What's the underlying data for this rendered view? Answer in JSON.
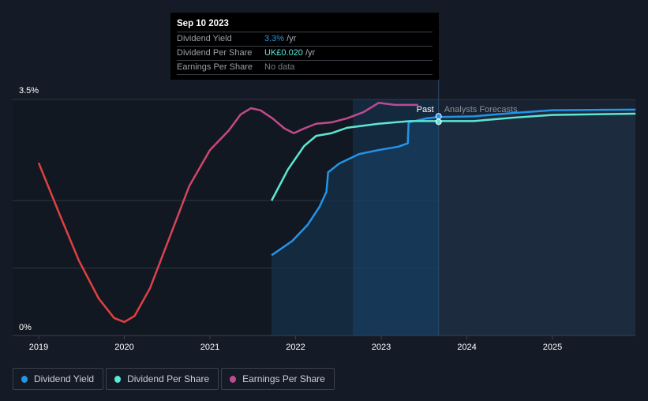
{
  "tooltip": {
    "date": "Sep 10 2023",
    "rows": [
      {
        "label": "Dividend Yield",
        "value": "3.3%",
        "unit": "/yr",
        "color": "#2394e8"
      },
      {
        "label": "Dividend Per Share",
        "value": "UK£0.020",
        "unit": "/yr",
        "color": "#5ce8d4"
      },
      {
        "label": "Earnings Per Share",
        "value": "No data",
        "unit": "",
        "color": "#777c84"
      }
    ]
  },
  "chart_data": {
    "type": "line",
    "y_tick_labels": [
      "3.5%",
      "0%"
    ],
    "ylim": [
      0,
      3.5
    ],
    "x_tick_labels": [
      "2019",
      "2020",
      "2021",
      "2022",
      "2023",
      "2024",
      "2025"
    ],
    "xlim": [
      2018.7,
      2025.97
    ],
    "past_label": "Past",
    "forecast_label": "Analysts Forecasts",
    "divider_x": 2023.67,
    "series": [
      {
        "name": "Dividend Yield",
        "color": "#2394e8",
        "points": [
          [
            2021.72,
            1.19
          ],
          [
            2021.96,
            1.4
          ],
          [
            2022.14,
            1.64
          ],
          [
            2022.28,
            1.91
          ],
          [
            2022.36,
            2.13
          ],
          [
            2022.38,
            2.42
          ],
          [
            2022.51,
            2.55
          ],
          [
            2022.74,
            2.69
          ],
          [
            2022.97,
            2.75
          ],
          [
            2023.2,
            2.8
          ],
          [
            2023.31,
            2.85
          ],
          [
            2023.32,
            3.16
          ],
          [
            2023.53,
            3.22
          ],
          [
            2023.67,
            3.24
          ],
          [
            2024.08,
            3.25
          ],
          [
            2024.54,
            3.3
          ],
          [
            2025.0,
            3.34
          ],
          [
            2025.97,
            3.35
          ]
        ]
      },
      {
        "name": "Dividend Per Share",
        "color": "#5ce8d4",
        "points": [
          [
            2021.72,
            2.0
          ],
          [
            2021.91,
            2.46
          ],
          [
            2022.1,
            2.81
          ],
          [
            2022.24,
            2.96
          ],
          [
            2022.42,
            3.0
          ],
          [
            2022.6,
            3.08
          ],
          [
            2022.97,
            3.14
          ],
          [
            2023.34,
            3.18
          ],
          [
            2023.67,
            3.18
          ],
          [
            2024.08,
            3.18
          ],
          [
            2024.54,
            3.23
          ],
          [
            2025.0,
            3.27
          ],
          [
            2025.97,
            3.29
          ]
        ]
      },
      {
        "name": "Earnings Per Share",
        "color": "#c04a8c",
        "points": [
          [
            2019.0,
            2.56
          ],
          [
            2019.24,
            1.81
          ],
          [
            2019.47,
            1.11
          ],
          [
            2019.7,
            0.55
          ],
          [
            2019.88,
            0.26
          ],
          [
            2020.0,
            0.2
          ],
          [
            2020.12,
            0.29
          ],
          [
            2020.3,
            0.7
          ],
          [
            2020.53,
            1.46
          ],
          [
            2020.76,
            2.22
          ],
          [
            2021.0,
            2.75
          ],
          [
            2021.22,
            3.04
          ],
          [
            2021.36,
            3.28
          ],
          [
            2021.48,
            3.37
          ],
          [
            2021.59,
            3.34
          ],
          [
            2021.73,
            3.22
          ],
          [
            2021.87,
            3.07
          ],
          [
            2021.98,
            3.0
          ],
          [
            2022.1,
            3.07
          ],
          [
            2022.24,
            3.14
          ],
          [
            2022.42,
            3.16
          ],
          [
            2022.6,
            3.22
          ],
          [
            2022.79,
            3.31
          ],
          [
            2022.97,
            3.45
          ],
          [
            2023.16,
            3.42
          ],
          [
            2023.34,
            3.42
          ],
          [
            2023.43,
            3.42
          ]
        ]
      }
    ]
  },
  "legend": [
    {
      "label": "Dividend Yield",
      "color": "#2394e8"
    },
    {
      "label": "Dividend Per Share",
      "color": "#5ce8d4"
    },
    {
      "label": "Earnings Per Share",
      "color": "#c04a8c"
    }
  ]
}
